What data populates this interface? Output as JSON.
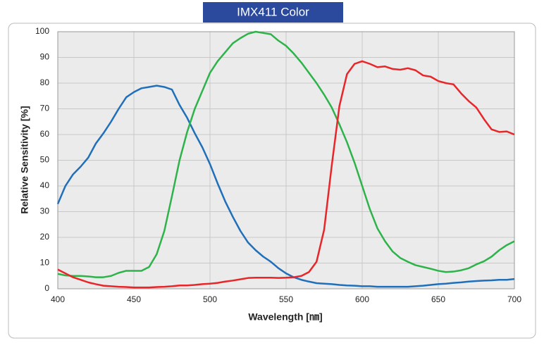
{
  "chart_data": {
    "type": "line",
    "title": "IMX411 Color",
    "x_label": "Wavelength [㎚]",
    "y_label": "Relative Sensitivity [%]",
    "x": [
      400,
      405,
      410,
      415,
      420,
      425,
      430,
      435,
      440,
      445,
      450,
      455,
      460,
      465,
      470,
      475,
      480,
      485,
      490,
      495,
      500,
      505,
      510,
      515,
      520,
      525,
      530,
      535,
      540,
      545,
      550,
      555,
      560,
      565,
      570,
      575,
      580,
      585,
      590,
      595,
      600,
      605,
      610,
      615,
      620,
      625,
      630,
      635,
      640,
      645,
      650,
      655,
      660,
      665,
      670,
      675,
      680,
      685,
      690,
      695,
      700
    ],
    "series": [
      {
        "color": "#1f6fba",
        "values": [
          33,
          40,
          44.5,
          47.5,
          51,
          56.5,
          60.5,
          65,
          70,
          74.5,
          76.5,
          78,
          78.5,
          79,
          78.5,
          77.5,
          71.5,
          66.5,
          60.5,
          55,
          48.5,
          41,
          34,
          28,
          22.5,
          18,
          15,
          12.5,
          10.5,
          8,
          6,
          4.5,
          3.5,
          2.8,
          2.2,
          2,
          1.8,
          1.5,
          1.3,
          1.2,
          1,
          1,
          0.8,
          0.8,
          0.8,
          0.8,
          0.8,
          1,
          1.2,
          1.5,
          1.8,
          2,
          2.3,
          2.5,
          2.8,
          3,
          3.2,
          3.3,
          3.5,
          3.5,
          3.8
        ]
      },
      {
        "color": "#2db34a",
        "values": [
          5.8,
          5.2,
          5,
          5,
          4.8,
          4.5,
          4.5,
          5,
          6.2,
          7,
          7,
          7,
          8.5,
          13.5,
          22.5,
          36,
          50,
          61,
          70,
          77,
          84,
          88.5,
          92,
          95.5,
          97.5,
          99.2,
          100,
          99.5,
          99,
          96.5,
          94.5,
          91.5,
          88,
          84,
          80,
          75.5,
          70.5,
          64,
          57,
          49,
          40,
          31,
          23.5,
          18.5,
          14.5,
          12,
          10.5,
          9.2,
          8.5,
          7.8,
          7,
          6.5,
          6.7,
          7.2,
          8,
          9.5,
          10.7,
          12.5,
          15,
          17,
          18.5
        ]
      },
      {
        "color": "#e8262a",
        "values": [
          7.5,
          6,
          4.5,
          3.5,
          2.5,
          1.8,
          1.2,
          1,
          0.8,
          0.7,
          0.5,
          0.5,
          0.5,
          0.7,
          0.8,
          1,
          1.3,
          1.3,
          1.5,
          1.8,
          2,
          2.3,
          2.8,
          3.2,
          3.7,
          4.2,
          4.3,
          4.3,
          4.3,
          4.2,
          4.3,
          4.5,
          5,
          6.5,
          10.5,
          23,
          48,
          71,
          83.5,
          87.5,
          88.5,
          87.5,
          86.2,
          86.5,
          85.5,
          85.2,
          85.8,
          85,
          83,
          82.5,
          80.8,
          80,
          79.5,
          76,
          73,
          70.5,
          66,
          62,
          61,
          61.2,
          60
        ]
      }
    ],
    "xlim": [
      400,
      700
    ],
    "xticks": [
      400,
      450,
      500,
      550,
      600,
      650,
      700
    ],
    "ylim": [
      0,
      100
    ],
    "yticks": [
      0,
      10,
      20,
      30,
      40,
      50,
      60,
      70,
      80,
      90,
      100
    ],
    "grid": true
  }
}
